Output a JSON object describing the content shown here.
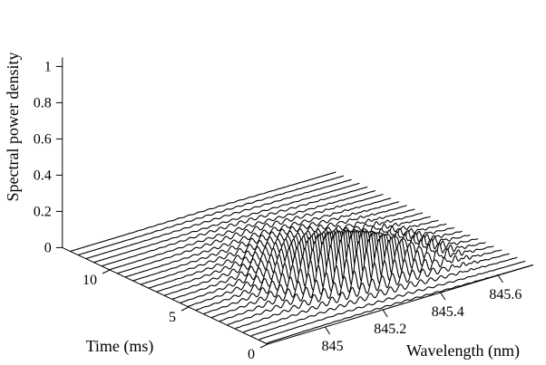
{
  "chart_data": {
    "type": "waterfall-3d-line",
    "title": "",
    "xlabel": "Wavelength (nm)",
    "ylabel": "Time (ms)",
    "zlabel": "Spectral power density",
    "x_ticks": [
      845,
      845.2,
      845.4,
      845.6
    ],
    "x_tick_labels": [
      "845",
      "845.2",
      "845.4",
      "845.6"
    ],
    "y_ticks": [
      0,
      5,
      10
    ],
    "y_tick_labels": [
      "0",
      "5",
      "10"
    ],
    "z_ticks": [
      0,
      0.2,
      0.4,
      0.6,
      0.8,
      1
    ],
    "z_tick_labels": [
      "0",
      "0.2",
      "0.4",
      "0.6",
      "0.8",
      "1"
    ],
    "xlim": [
      844.8,
      845.72
    ],
    "ylim": [
      0,
      13
    ],
    "zlim": [
      0,
      1.05
    ],
    "series": [
      {
        "time": 0,
        "peak": 0.008
      },
      {
        "time": 0.5,
        "peak": 0.015
      },
      {
        "time": 1,
        "peak": 0.04
      },
      {
        "time": 1.5,
        "peak": 0.08
      },
      {
        "time": 2,
        "peak": 0.13
      },
      {
        "time": 2.5,
        "peak": 0.18
      },
      {
        "time": 3,
        "peak": 0.21
      },
      {
        "time": 3.5,
        "peak": 0.22
      },
      {
        "time": 4,
        "peak": 0.22
      },
      {
        "time": 4.5,
        "peak": 0.2
      },
      {
        "time": 5,
        "peak": 0.18
      },
      {
        "time": 5.5,
        "peak": 0.15
      },
      {
        "time": 6,
        "peak": 0.12
      },
      {
        "time": 6.5,
        "peak": 0.1
      },
      {
        "time": 7,
        "peak": 0.08
      },
      {
        "time": 7.5,
        "peak": 0.06
      },
      {
        "time": 8,
        "peak": 0.05
      },
      {
        "time": 8.5,
        "peak": 0.04
      },
      {
        "time": 9,
        "peak": 0.03
      },
      {
        "time": 9.5,
        "peak": 0.03
      },
      {
        "time": 10,
        "peak": 0.02
      },
      {
        "time": 10.5,
        "peak": 0.02
      },
      {
        "time": 11,
        "peak": 0.01
      },
      {
        "time": 11.5,
        "peak": 0.01
      },
      {
        "time": 12,
        "peak": 0.008
      },
      {
        "time": 12.5,
        "peak": 0.005
      }
    ],
    "colors": {
      "line": "#000000",
      "background": "#ffffff"
    }
  }
}
